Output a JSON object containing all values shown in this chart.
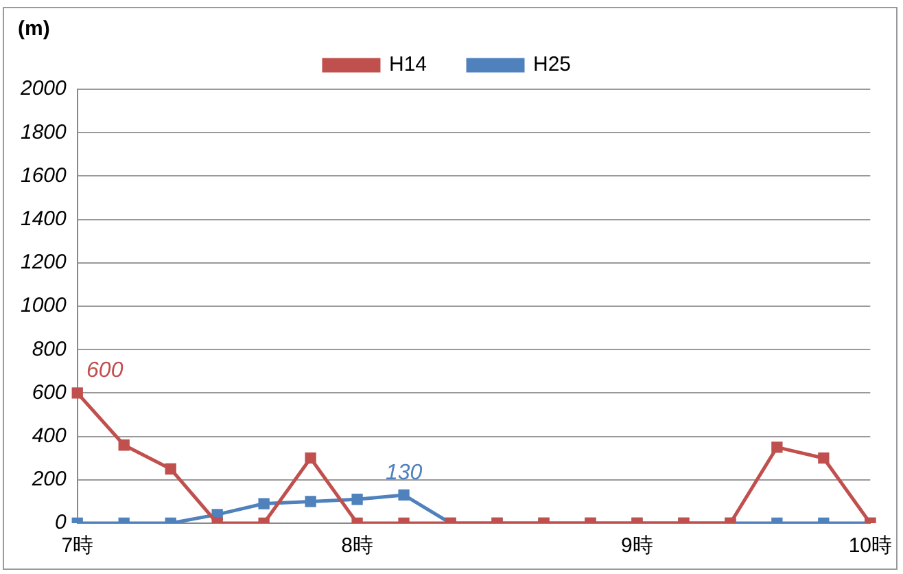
{
  "chart_data": {
    "type": "line",
    "ylabel": "(m)",
    "categories": [
      "7時",
      null,
      null,
      null,
      null,
      null,
      "8時",
      null,
      null,
      null,
      null,
      null,
      "9時",
      null,
      null,
      null,
      null,
      "10時"
    ],
    "series": [
      {
        "name": "H14",
        "color": "#c0504d",
        "values": [
          600,
          360,
          250,
          0,
          0,
          300,
          0,
          0,
          0,
          0,
          0,
          0,
          0,
          0,
          0,
          350,
          300,
          0
        ],
        "value_labels": [
          "600",
          null,
          null,
          null,
          null,
          null,
          null,
          null,
          null,
          null,
          null,
          null,
          null,
          null,
          null,
          null,
          null,
          null
        ]
      },
      {
        "name": "H25",
        "color": "#4f81bd",
        "values": [
          0,
          0,
          0,
          40,
          90,
          100,
          110,
          130,
          0,
          0,
          0,
          0,
          0,
          0,
          0,
          0,
          0,
          0
        ],
        "value_labels": [
          null,
          null,
          null,
          null,
          null,
          null,
          null,
          "130",
          null,
          null,
          null,
          null,
          null,
          null,
          null,
          null,
          null,
          null
        ]
      }
    ],
    "ylim": [
      0,
      2000
    ],
    "yticks": [
      0,
      200,
      400,
      600,
      800,
      1000,
      1200,
      1400,
      1600,
      1800,
      2000
    ],
    "grid": "y",
    "legend": "top",
    "marker": "square",
    "line_style": "solid"
  }
}
